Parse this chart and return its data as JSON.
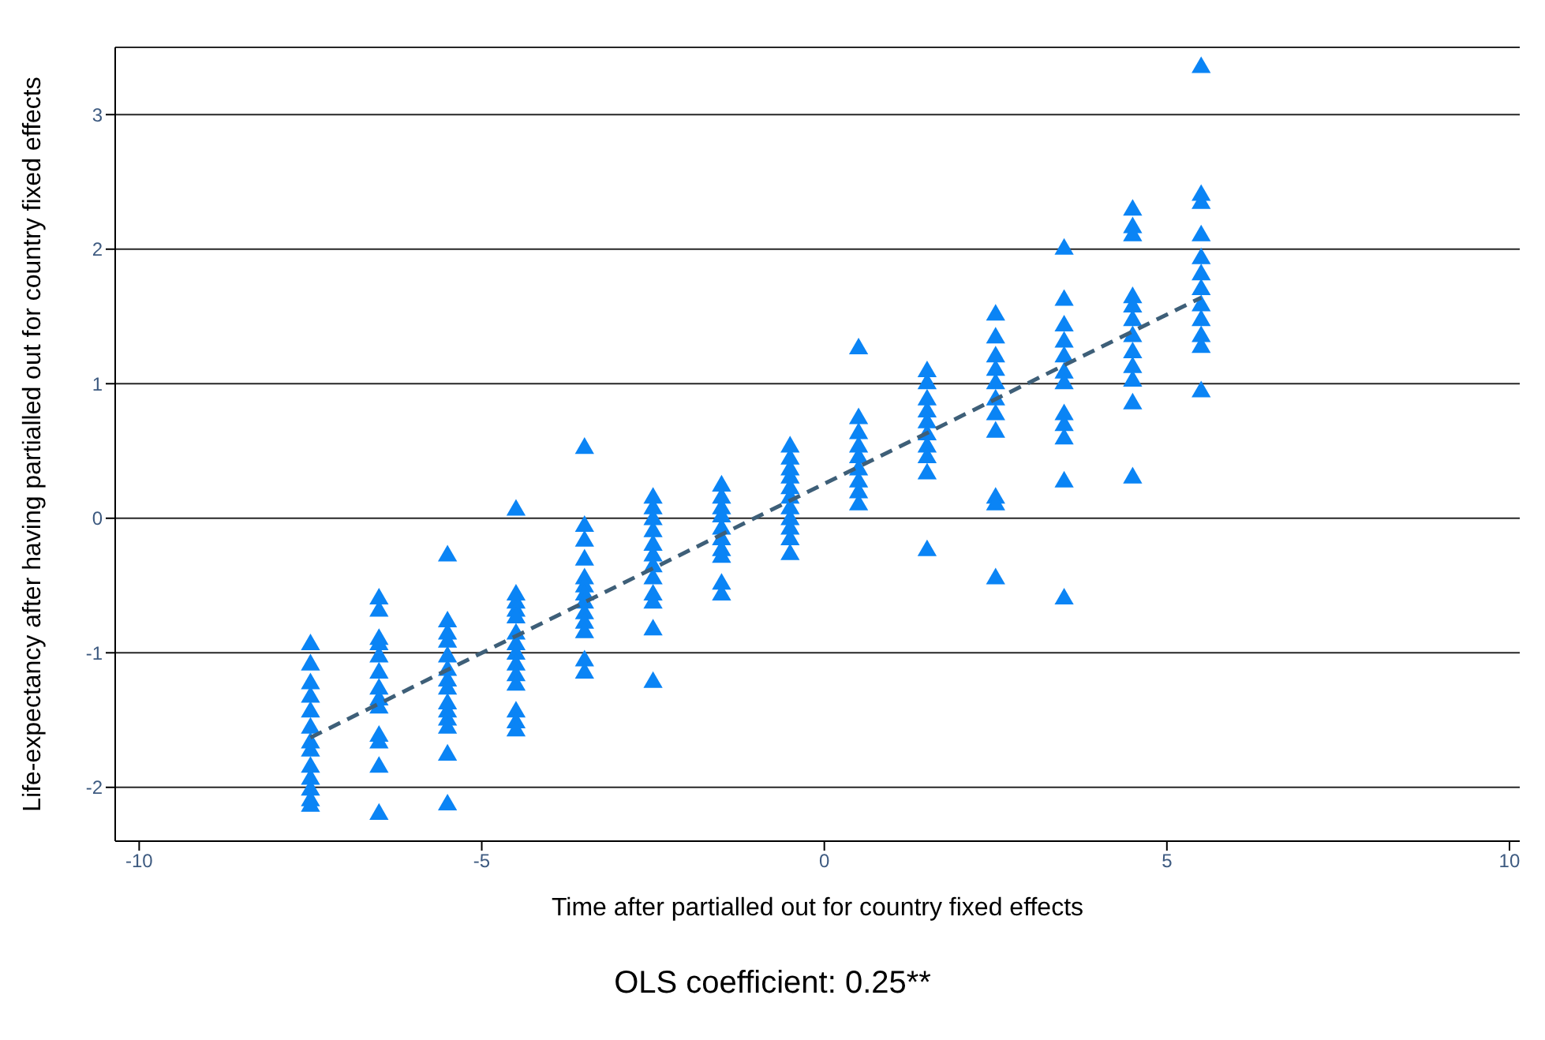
{
  "chart_data": {
    "type": "scatter",
    "xlabel": "Time after partialled out for country fixed effects",
    "ylabel": "Life-expectancy after having partialled out for country fixed effects",
    "annotations": [
      "OLS coefficient: 0.25**"
    ],
    "xlim": [
      -10.35,
      10.15
    ],
    "xticks": [
      -10,
      -5,
      0,
      5,
      10
    ],
    "ylim": [
      -2.4,
      3.5
    ],
    "yticks": [
      -2,
      -1,
      0,
      1,
      2,
      3
    ],
    "grid": "y",
    "marker": "triangle",
    "series": [
      {
        "color": "#0a84f5",
        "x": [
          -7.5,
          -7.5,
          -7.5,
          -7.5,
          -7.5,
          -7.5,
          -7.5,
          -7.5,
          -7.5,
          -7.5,
          -7.5,
          -7.5,
          -7.5,
          -6.5,
          -6.5,
          -6.5,
          -6.5,
          -6.5,
          -6.5,
          -6.5,
          -6.5,
          -6.5,
          -6.5,
          -6.5,
          -6.5,
          -6.5,
          -5.5,
          -5.5,
          -5.5,
          -5.5,
          -5.5,
          -5.5,
          -5.5,
          -5.5,
          -5.5,
          -5.5,
          -5.5,
          -5.5,
          -5.5,
          -5.5,
          -4.5,
          -4.5,
          -4.5,
          -4.5,
          -4.5,
          -4.5,
          -4.5,
          -4.5,
          -4.5,
          -4.5,
          -4.5,
          -4.5,
          -4.5,
          -4.5,
          -3.5,
          -3.5,
          -3.5,
          -3.5,
          -3.5,
          -3.5,
          -3.5,
          -3.5,
          -3.5,
          -3.5,
          -3.5,
          -3.5,
          -3.5,
          -2.5,
          -2.5,
          -2.5,
          -2.5,
          -2.5,
          -2.5,
          -2.5,
          -2.5,
          -2.5,
          -2.5,
          -2.5,
          -2.5,
          -1.5,
          -1.5,
          -1.5,
          -1.5,
          -1.5,
          -1.5,
          -1.5,
          -1.5,
          -1.5,
          -1.5,
          -0.5,
          -0.5,
          -0.5,
          -0.5,
          -0.5,
          -0.5,
          -0.5,
          -0.5,
          -0.5,
          -0.5,
          -0.5,
          0.5,
          0.5,
          0.5,
          0.5,
          0.5,
          0.5,
          0.5,
          0.5,
          0.5,
          1.5,
          1.5,
          1.5,
          1.5,
          1.5,
          1.5,
          1.5,
          1.5,
          1.5,
          1.5,
          2.5,
          2.5,
          2.5,
          2.5,
          2.5,
          2.5,
          2.5,
          2.5,
          2.5,
          2.5,
          2.5,
          3.5,
          3.5,
          3.5,
          3.5,
          3.5,
          3.5,
          3.5,
          3.5,
          3.5,
          3.5,
          3.5,
          3.5,
          4.5,
          4.5,
          4.5,
          4.5,
          4.5,
          4.5,
          4.5,
          4.5,
          4.5,
          4.5,
          4.5,
          4.5,
          5.5,
          5.5,
          5.5,
          5.5,
          5.5,
          5.5,
          5.5,
          5.5,
          5.5,
          5.5,
          5.5,
          5.5
        ],
        "values": [
          -0.94,
          -1.09,
          -1.23,
          -1.33,
          -1.44,
          -1.56,
          -1.67,
          -1.73,
          -1.85,
          -1.94,
          -2.02,
          -2.1,
          -2.14,
          -0.6,
          -0.69,
          -0.9,
          -0.94,
          -1.03,
          -1.15,
          -1.27,
          -1.35,
          -1.41,
          -1.62,
          -1.67,
          -1.85,
          -2.2,
          -0.28,
          -0.77,
          -0.86,
          -0.92,
          -1.03,
          -1.13,
          -1.21,
          -1.27,
          -1.38,
          -1.44,
          -1.5,
          -1.56,
          -1.76,
          -2.13,
          0.06,
          -0.57,
          -0.63,
          -0.69,
          -0.74,
          -0.86,
          -0.94,
          -1.01,
          -1.09,
          -1.17,
          -1.24,
          -1.44,
          -1.52,
          -1.58,
          0.52,
          -0.06,
          -0.17,
          -0.31,
          -0.45,
          -0.51,
          -0.57,
          -0.63,
          -0.71,
          -0.78,
          -0.85,
          -1.06,
          -1.15,
          0.15,
          0.07,
          -0.01,
          -0.1,
          -0.2,
          -0.28,
          -0.36,
          -0.45,
          -0.57,
          -0.63,
          -0.83,
          -1.22,
          0.24,
          0.15,
          0.07,
          0.01,
          -0.08,
          -0.16,
          -0.24,
          -0.29,
          -0.49,
          -0.57,
          0.53,
          0.44,
          0.36,
          0.3,
          0.22,
          0.15,
          0.07,
          -0.01,
          -0.08,
          -0.16,
          -0.27,
          1.26,
          0.74,
          0.63,
          0.53,
          0.45,
          0.36,
          0.27,
          0.19,
          0.1,
          1.09,
          1.0,
          0.88,
          0.79,
          0.71,
          0.62,
          0.53,
          0.45,
          0.33,
          -0.24,
          1.51,
          1.34,
          1.2,
          1.1,
          1.0,
          0.88,
          0.77,
          0.64,
          0.15,
          0.1,
          -0.45,
          2.0,
          1.62,
          1.43,
          1.31,
          1.2,
          1.08,
          1.0,
          0.77,
          0.69,
          0.59,
          0.27,
          -0.6,
          2.29,
          2.16,
          2.1,
          1.64,
          1.57,
          1.47,
          1.35,
          1.23,
          1.12,
          1.02,
          0.85,
          0.3,
          3.35,
          2.4,
          2.34,
          2.1,
          1.93,
          1.81,
          1.7,
          1.58,
          1.47,
          1.35,
          1.27,
          0.94
        ]
      },
      {
        "type": "line",
        "marker": "none",
        "color": "#3e5f78",
        "line_style": "dashed",
        "x": [
          -7.5,
          5.5
        ],
        "values": [
          -1.63,
          1.64
        ]
      }
    ]
  }
}
